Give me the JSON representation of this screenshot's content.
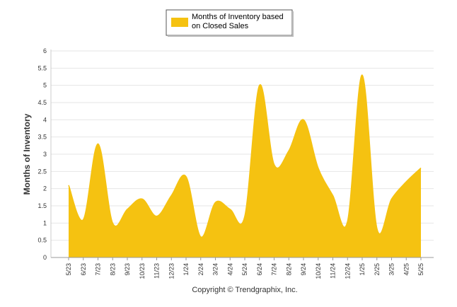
{
  "chart_data": {
    "type": "area",
    "ylabel": "Months of Inventory",
    "xlabel": "",
    "ylim": [
      0,
      6
    ],
    "yticks": [
      "0",
      "0.5",
      "1",
      "1.5",
      "2",
      "2.5",
      "3",
      "3.5",
      "4",
      "4.5",
      "5",
      "5.5",
      "6"
    ],
    "grid": true,
    "legend_position": "top-center",
    "categories": [
      "5/23",
      "6/23",
      "7/23",
      "8/23",
      "9/23",
      "10/23",
      "11/23",
      "12/23",
      "1/24",
      "2/24",
      "3/24",
      "4/24",
      "5/24",
      "6/24",
      "7/24",
      "8/24",
      "9/24",
      "10/24",
      "11/24",
      "12/24",
      "1/25",
      "2/25",
      "3/25",
      "4/25",
      "5/25"
    ],
    "series": [
      {
        "name": "Months of Inventory based on Closed Sales",
        "legend_lines": [
          "Months of Inventory based",
          "on Closed Sales"
        ],
        "color": "#f5c211",
        "values": [
          2.1,
          1.1,
          3.3,
          1.0,
          1.4,
          1.7,
          1.2,
          1.8,
          2.35,
          0.6,
          1.6,
          1.4,
          1.2,
          5.0,
          2.7,
          3.1,
          4.0,
          2.6,
          1.8,
          1.05,
          5.3,
          0.85,
          1.7,
          2.2,
          2.6
        ]
      }
    ],
    "credit": "Copyright © Trendgraphix, Inc."
  }
}
